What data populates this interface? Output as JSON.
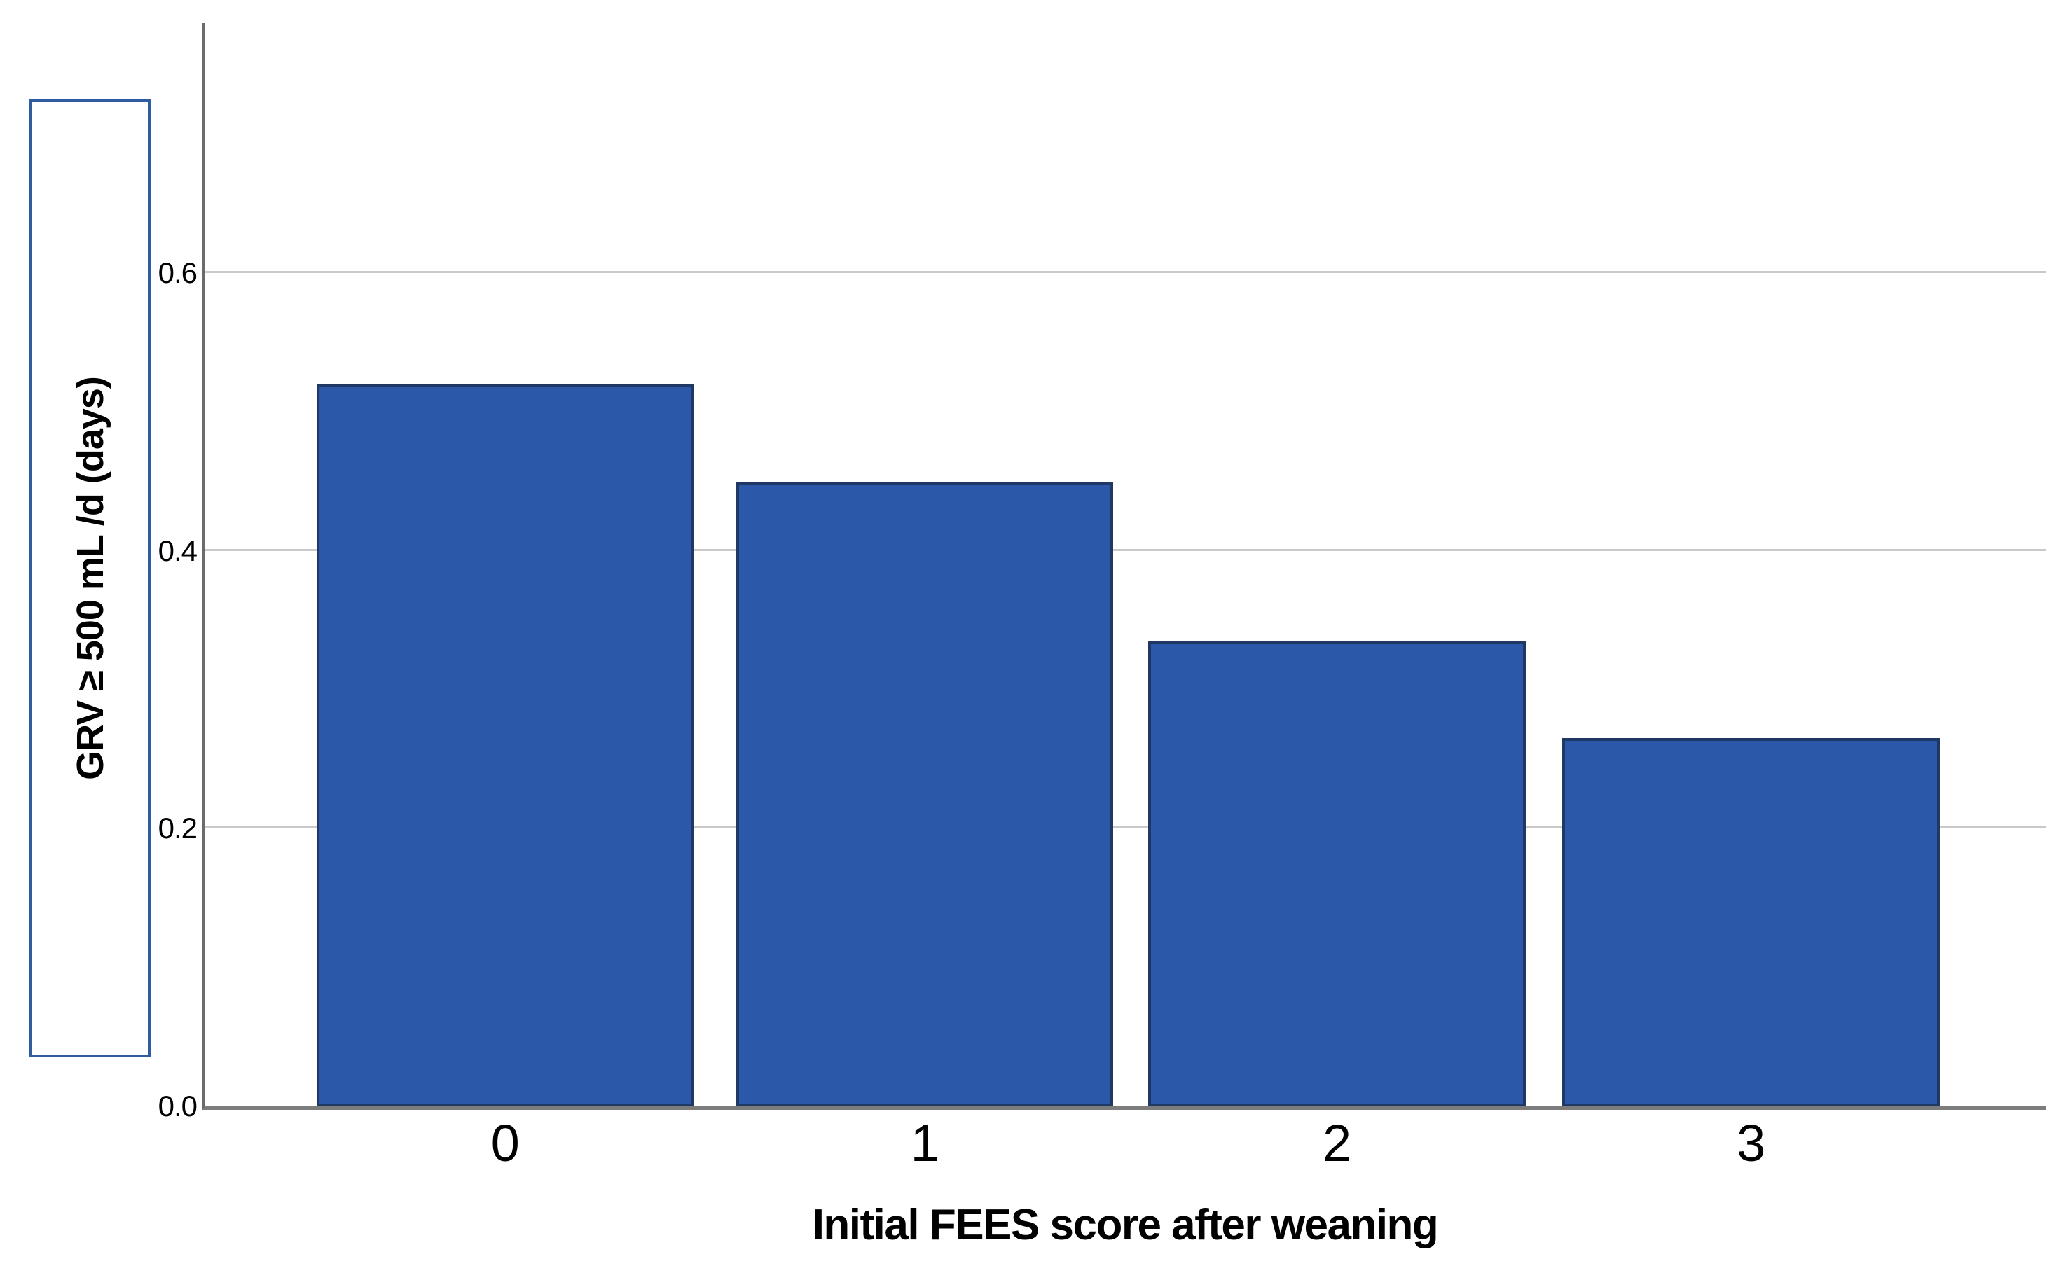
{
  "figure": {
    "background": "#ffffff"
  },
  "chart_data": {
    "type": "bar",
    "title": "",
    "categories": [
      "0",
      "1",
      "2",
      "3"
    ],
    "values": [
      0.52,
      0.45,
      0.335,
      0.265
    ],
    "xlabel": "Initial FEES score after weaning",
    "ylabel": "GRV ≥ 500 mL /d (days)",
    "yticks": [
      0.0,
      0.2,
      0.4,
      0.6
    ],
    "ytick_labels": [
      "0.0",
      "0.2",
      "0.4",
      "0.6"
    ],
    "ylim": [
      0,
      0.78
    ],
    "grid": "horizontal-only",
    "legend": "none",
    "colors": {
      "bar_fill": "#2b58a8",
      "bar_border": "#1f3864",
      "gridline": "#c9c9c9",
      "y_axis_line": "#6b6b6b",
      "baseline": "#7d7d7d",
      "ylabel_box_border": "#2e5c9e",
      "text": "#000000"
    }
  }
}
